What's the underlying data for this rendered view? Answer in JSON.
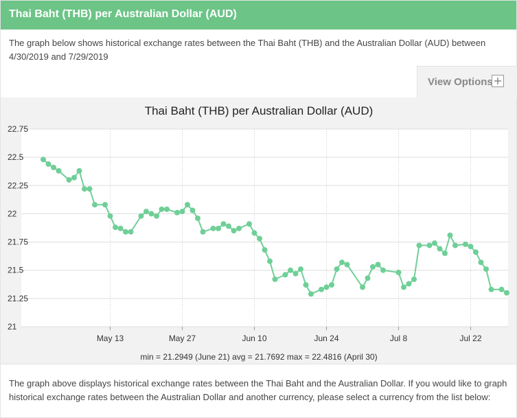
{
  "header": {
    "title": "Thai Baht (THB) per Australian Dollar (AUD)"
  },
  "intro": {
    "text": "The graph below shows historical exchange rates between the Thai Baht (THB) and the Australian Dollar (AUD) between 4/30/2019 and 7/29/2019"
  },
  "view_options": {
    "label": "View Options",
    "icon": "plus-icon"
  },
  "summary": {
    "text": "min = 21.2949 (June 21) avg = 21.7692 max = 22.4816 (April 30)"
  },
  "bottom": {
    "text": "The graph above displays historical exchange rates between the Thai Baht and the Australian Dollar. If you would like to graph historical exchange rates between the Australian Dollar and another currency, please select a currency from the list below:"
  },
  "colors": {
    "header": "#6cc487",
    "line": "#6fcf97",
    "panel": "#f2f2f2"
  },
  "chart_data": {
    "type": "line",
    "title": "Thai Baht (THB) per Australian Dollar (AUD)",
    "x_start": "2019-04-30",
    "x_end": "2019-07-29",
    "ylim": [
      21,
      22.75
    ],
    "y_ticks": [
      21,
      21.25,
      21.5,
      21.75,
      22,
      22.25,
      22.5,
      22.75
    ],
    "y_tick_labels": [
      "21",
      "21.25",
      "21.5",
      "21.75",
      "22",
      "22.25",
      "22.5",
      "22.75"
    ],
    "x_ticks": [
      {
        "date": "2019-05-13",
        "label": "May 13"
      },
      {
        "date": "2019-05-27",
        "label": "May 27"
      },
      {
        "date": "2019-06-10",
        "label": "Jun 10"
      },
      {
        "date": "2019-06-24",
        "label": "Jun 24"
      },
      {
        "date": "2019-07-08",
        "label": "Jul 8"
      },
      {
        "date": "2019-07-22",
        "label": "Jul 22"
      }
    ],
    "grid": true,
    "series": [
      {
        "points": [
          [
            "2019-04-30",
            22.48
          ],
          [
            "2019-05-01",
            22.44
          ],
          [
            "2019-05-02",
            22.41
          ],
          [
            "2019-05-03",
            22.38
          ],
          [
            "2019-05-05",
            22.3
          ],
          [
            "2019-05-06",
            22.32
          ],
          [
            "2019-05-07",
            22.38
          ],
          [
            "2019-05-08",
            22.22
          ],
          [
            "2019-05-09",
            22.22
          ],
          [
            "2019-05-10",
            22.08
          ],
          [
            "2019-05-12",
            22.08
          ],
          [
            "2019-05-13",
            21.98
          ],
          [
            "2019-05-14",
            21.88
          ],
          [
            "2019-05-15",
            21.87
          ],
          [
            "2019-05-16",
            21.84
          ],
          [
            "2019-05-17",
            21.84
          ],
          [
            "2019-05-19",
            21.98
          ],
          [
            "2019-05-20",
            22.02
          ],
          [
            "2019-05-21",
            22.0
          ],
          [
            "2019-05-22",
            21.98
          ],
          [
            "2019-05-23",
            22.04
          ],
          [
            "2019-05-24",
            22.04
          ],
          [
            "2019-05-26",
            22.01
          ],
          [
            "2019-05-27",
            22.02
          ],
          [
            "2019-05-28",
            22.08
          ],
          [
            "2019-05-29",
            22.03
          ],
          [
            "2019-05-30",
            21.96
          ],
          [
            "2019-05-31",
            21.84
          ],
          [
            "2019-06-02",
            21.87
          ],
          [
            "2019-06-03",
            21.87
          ],
          [
            "2019-06-04",
            21.91
          ],
          [
            "2019-06-05",
            21.89
          ],
          [
            "2019-06-06",
            21.85
          ],
          [
            "2019-06-07",
            21.87
          ],
          [
            "2019-06-09",
            21.91
          ],
          [
            "2019-06-10",
            21.83
          ],
          [
            "2019-06-11",
            21.78
          ],
          [
            "2019-06-12",
            21.68
          ],
          [
            "2019-06-13",
            21.58
          ],
          [
            "2019-06-14",
            21.42
          ],
          [
            "2019-06-16",
            21.46
          ],
          [
            "2019-06-17",
            21.5
          ],
          [
            "2019-06-18",
            21.47
          ],
          [
            "2019-06-19",
            21.51
          ],
          [
            "2019-06-20",
            21.37
          ],
          [
            "2019-06-21",
            21.29
          ],
          [
            "2019-06-23",
            21.33
          ],
          [
            "2019-06-24",
            21.35
          ],
          [
            "2019-06-25",
            21.37
          ],
          [
            "2019-06-26",
            21.51
          ],
          [
            "2019-06-27",
            21.57
          ],
          [
            "2019-06-28",
            21.55
          ],
          [
            "2019-07-01",
            21.35
          ],
          [
            "2019-07-02",
            21.43
          ],
          [
            "2019-07-03",
            21.53
          ],
          [
            "2019-07-04",
            21.55
          ],
          [
            "2019-07-05",
            21.5
          ],
          [
            "2019-07-08",
            21.48
          ],
          [
            "2019-07-09",
            21.35
          ],
          [
            "2019-07-10",
            21.38
          ],
          [
            "2019-07-11",
            21.42
          ],
          [
            "2019-07-12",
            21.72
          ],
          [
            "2019-07-14",
            21.72
          ],
          [
            "2019-07-15",
            21.74
          ],
          [
            "2019-07-16",
            21.69
          ],
          [
            "2019-07-17",
            21.65
          ],
          [
            "2019-07-18",
            21.81
          ],
          [
            "2019-07-19",
            21.72
          ],
          [
            "2019-07-21",
            21.73
          ],
          [
            "2019-07-22",
            21.71
          ],
          [
            "2019-07-23",
            21.66
          ],
          [
            "2019-07-24",
            21.57
          ],
          [
            "2019-07-25",
            21.51
          ],
          [
            "2019-07-26",
            21.33
          ],
          [
            "2019-07-28",
            21.33
          ],
          [
            "2019-07-29",
            21.3
          ]
        ]
      }
    ]
  }
}
